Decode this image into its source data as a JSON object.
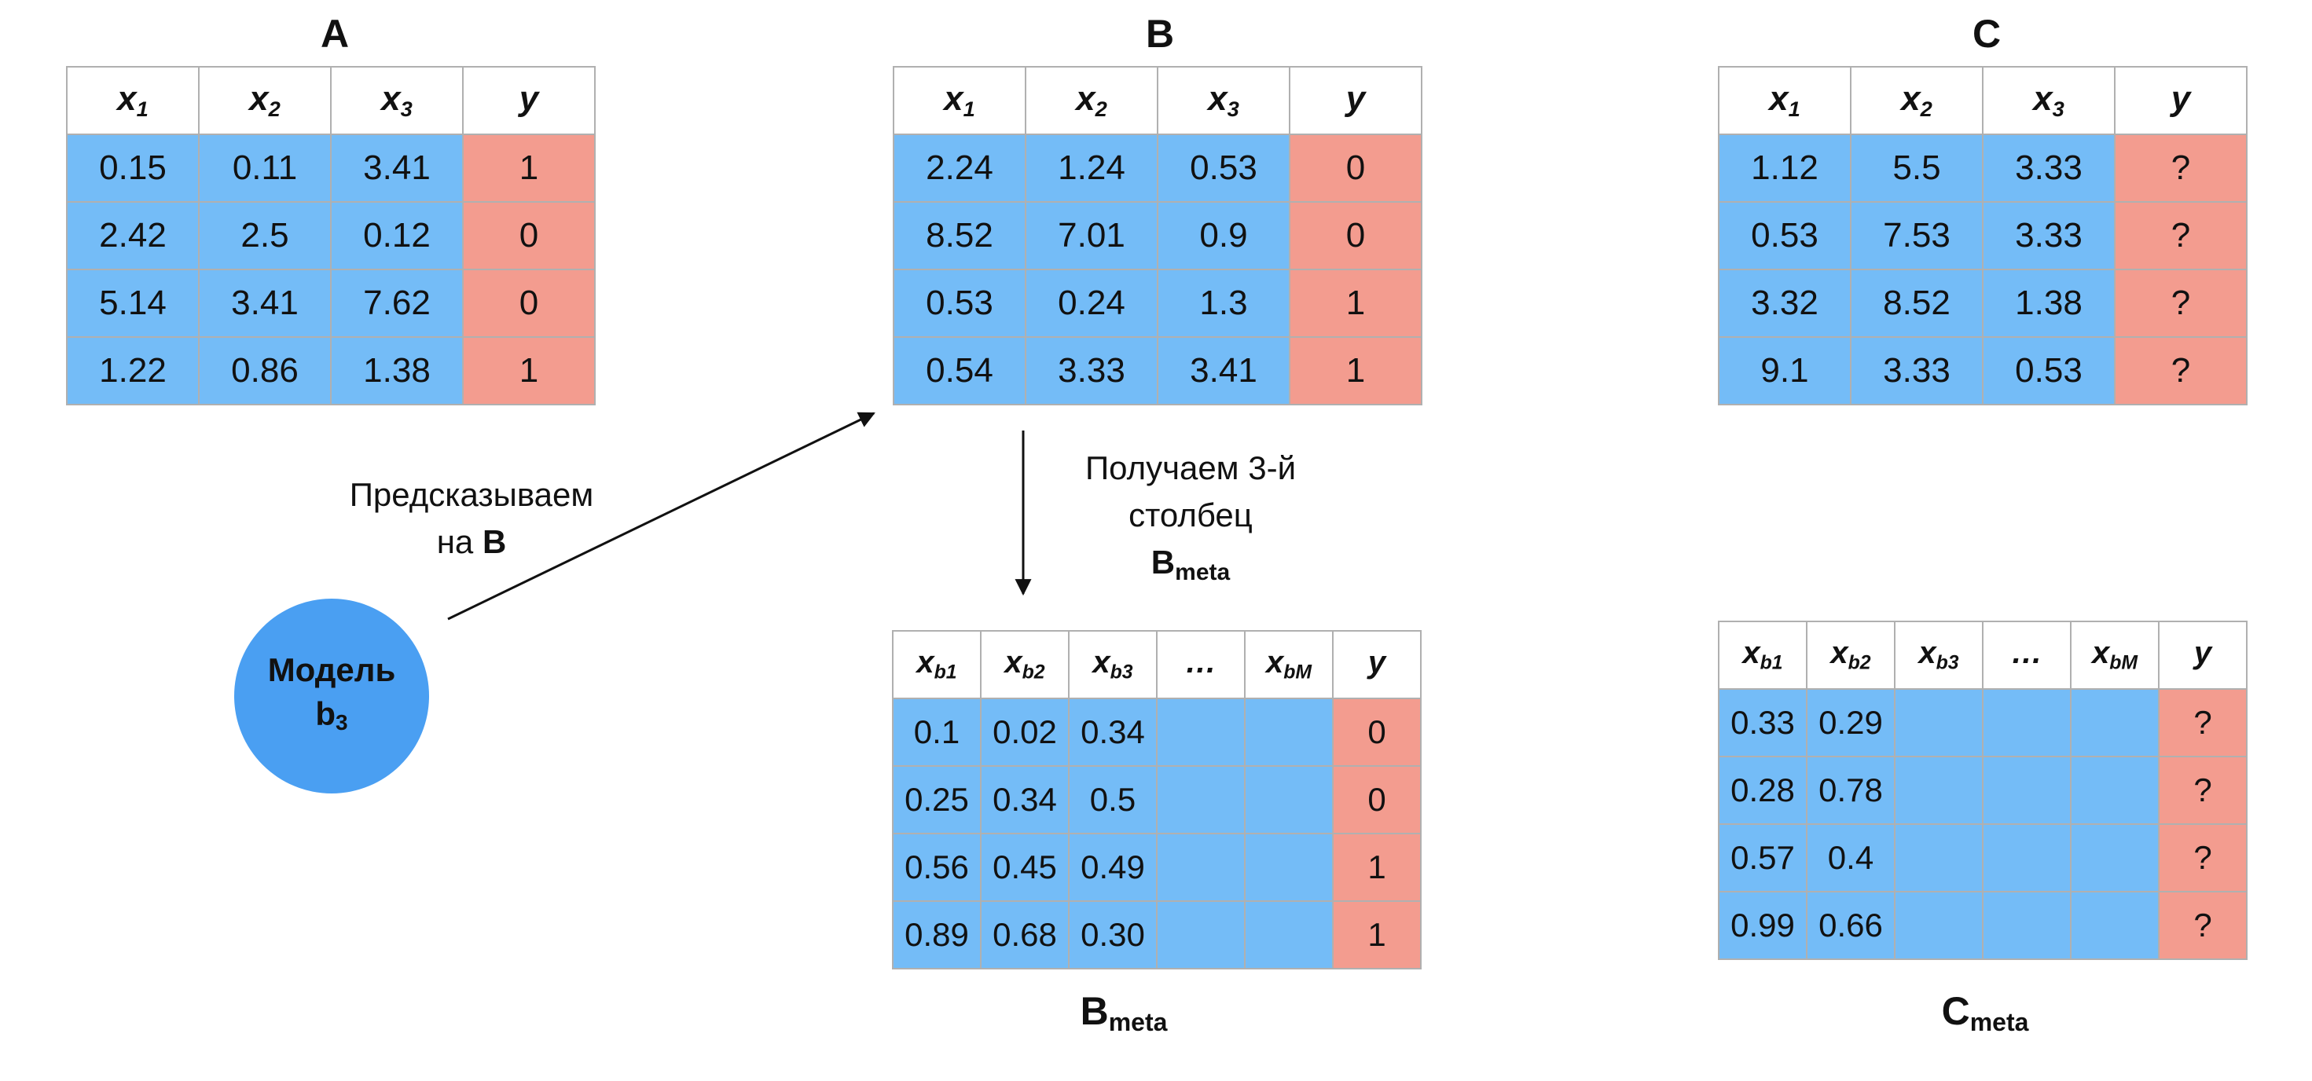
{
  "titles": {
    "a": "A",
    "b": "B",
    "c": "C",
    "b_meta_base": "B",
    "b_meta_sub": "meta",
    "c_meta_base": "C",
    "c_meta_sub": "meta"
  },
  "headers_abc": [
    {
      "base": "x",
      "sub": "1"
    },
    {
      "base": "x",
      "sub": "2"
    },
    {
      "base": "x",
      "sub": "3"
    },
    {
      "base": "y",
      "sub": ""
    }
  ],
  "headers_meta": [
    {
      "base": "x",
      "sub": "b1"
    },
    {
      "base": "x",
      "sub": "b2"
    },
    {
      "base": "x",
      "sub": "b3"
    },
    {
      "base": "…",
      "sub": ""
    },
    {
      "base": "x",
      "sub": "bM"
    },
    {
      "base": "y",
      "sub": ""
    }
  ],
  "table_a": [
    [
      "0.15",
      "0.11",
      "3.41",
      "1"
    ],
    [
      "2.42",
      "2.5",
      "0.12",
      "0"
    ],
    [
      "5.14",
      "3.41",
      "7.62",
      "0"
    ],
    [
      "1.22",
      "0.86",
      "1.38",
      "1"
    ]
  ],
  "table_b": [
    [
      "2.24",
      "1.24",
      "0.53",
      "0"
    ],
    [
      "8.52",
      "7.01",
      "0.9",
      "0"
    ],
    [
      "0.53",
      "0.24",
      "1.3",
      "1"
    ],
    [
      "0.54",
      "3.33",
      "3.41",
      "1"
    ]
  ],
  "table_c": [
    [
      "1.12",
      "5.5",
      "3.33",
      "?"
    ],
    [
      "0.53",
      "7.53",
      "3.33",
      "?"
    ],
    [
      "3.32",
      "8.52",
      "1.38",
      "?"
    ],
    [
      "9.1",
      "3.33",
      "0.53",
      "?"
    ]
  ],
  "table_b_meta": [
    [
      "0.1",
      "0.02",
      "0.34",
      "",
      "",
      "0"
    ],
    [
      "0.25",
      "0.34",
      "0.5",
      "",
      "",
      "0"
    ],
    [
      "0.56",
      "0.45",
      "0.49",
      "",
      "",
      "1"
    ],
    [
      "0.89",
      "0.68",
      "0.30",
      "",
      "",
      "1"
    ]
  ],
  "table_c_meta": [
    [
      "0.33",
      "0.29",
      "",
      "",
      "",
      "?"
    ],
    [
      "0.28",
      "0.78",
      "",
      "",
      "",
      "?"
    ],
    [
      "0.57",
      "0.4",
      "",
      "",
      "",
      "?"
    ],
    [
      "0.99",
      "0.66",
      "",
      "",
      "",
      "?"
    ]
  ],
  "labels": {
    "predict_line1": "Предсказываем",
    "predict_line2_prefix": "на ",
    "predict_line2_bold": "B",
    "get_line1": "Получаем 3-й",
    "get_line2": "столбец",
    "get_line3_base": "B",
    "get_line3_sub": "meta"
  },
  "model": {
    "line1": "Модель",
    "line2_base": "b",
    "line2_sub": "3"
  },
  "colors": {
    "feature": "#74bcf7",
    "target": "#f39c8f",
    "model": "#4a9ff2"
  }
}
